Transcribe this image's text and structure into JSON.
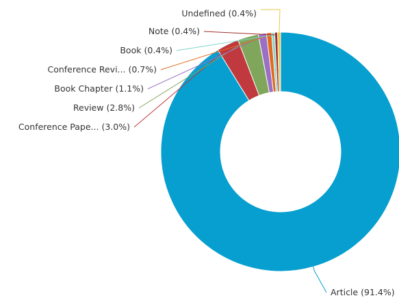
{
  "chart_data": {
    "type": "donut",
    "categories": [
      "Article",
      "Conference Pape...",
      "Review",
      "Book Chapter",
      "Conference Revi...",
      "Book",
      "Note",
      "Undefined"
    ],
    "values": [
      91.4,
      3.0,
      2.8,
      1.1,
      0.7,
      0.4,
      0.4,
      0.4
    ],
    "value_labels": [
      "(91.4%)",
      "(3.0%)",
      "(2.8%)",
      "(1.1%)",
      "(0.7%)",
      "(0.4%)",
      "(0.4%)",
      "(0.4%)"
    ],
    "colors": [
      "#069fcf",
      "#c0393f",
      "#7fa65a",
      "#9b6fc4",
      "#e06a1f",
      "#7fd6c9",
      "#a12d2d",
      "#e8c548"
    ]
  }
}
